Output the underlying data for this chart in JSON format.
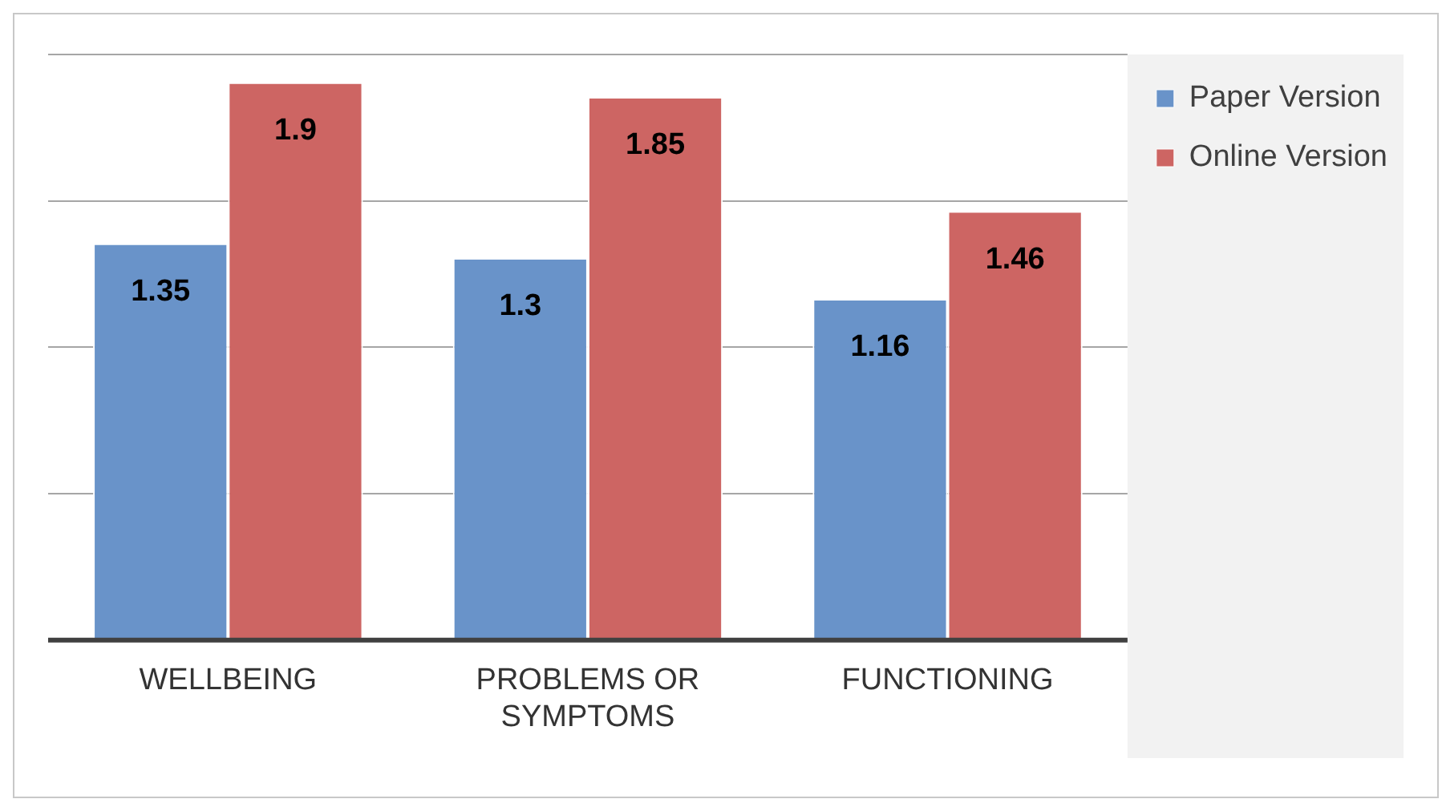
{
  "chart_data": {
    "type": "bar",
    "categories": [
      "WELLBEING",
      "PROBLEMS OR SYMPTOMS",
      "FUNCTIONING"
    ],
    "series": [
      {
        "name": "Paper Version",
        "color": "#6993c9",
        "values": [
          1.35,
          1.3,
          1.16
        ]
      },
      {
        "name": "Online Version",
        "color": "#cd6563",
        "values": [
          1.9,
          1.85,
          1.46
        ]
      }
    ],
    "ylim": [
      0,
      2
    ],
    "yticks": [
      {
        "value": 0,
        "label": null
      },
      {
        "value": 0.5,
        "label": null
      },
      {
        "value": 1,
        "label": null
      },
      {
        "value": 1.5,
        "label": null
      },
      {
        "value": 2,
        "label": null
      }
    ],
    "tick_labels": "x",
    "grid": "y",
    "legend": "top right",
    "data_labels": true
  }
}
